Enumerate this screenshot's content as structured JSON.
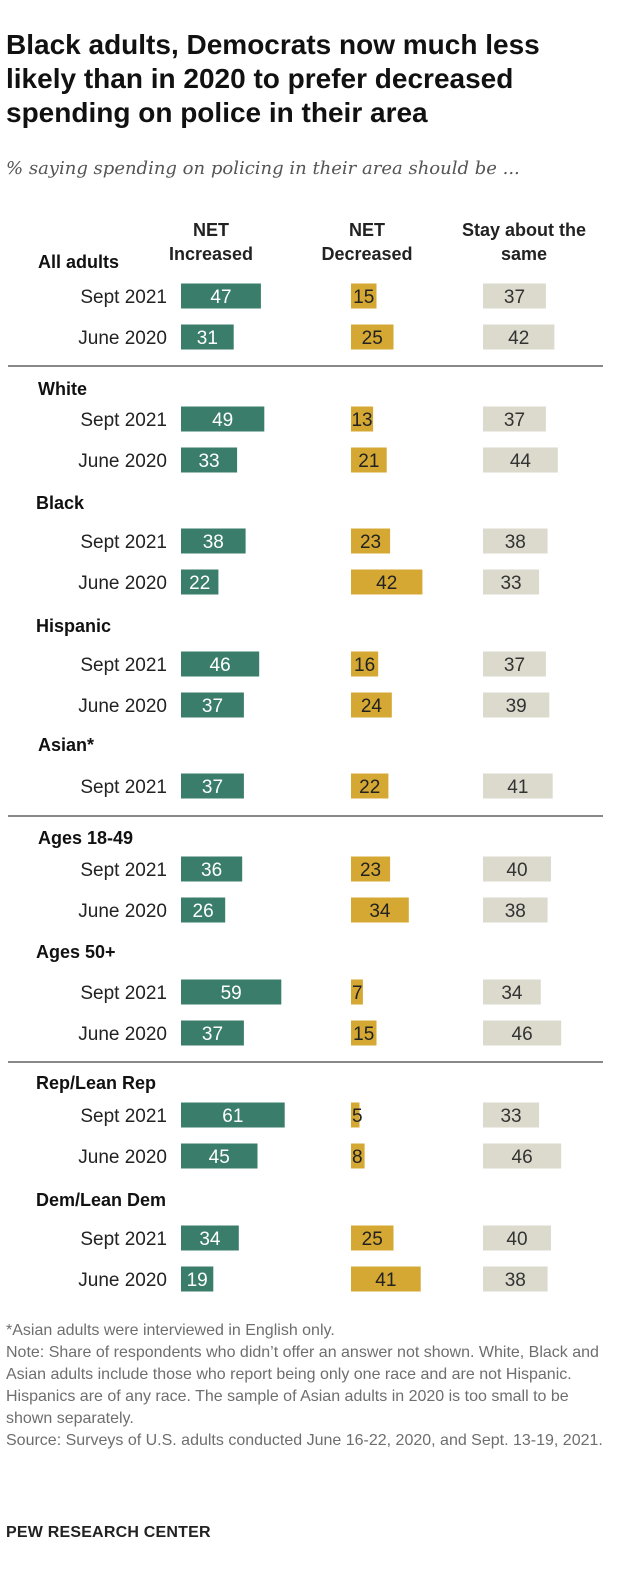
{
  "title": "Black adults, Democrats now much less likely than in 2020 to prefer decreased spending on police in their area",
  "subtitle": "% saying spending on policing in their area should be ...",
  "columns": [
    "NET Increased",
    "NET Decreased",
    "Stay about the same"
  ],
  "colors": {
    "increased": "#3a7d6b",
    "decreased": "#d4a832",
    "same": "#dcdacd",
    "rule": "#888888"
  },
  "chart_data": {
    "type": "bar",
    "subtitle": "% saying spending on policing in their area should be ...",
    "series_names": [
      "NET Increased",
      "NET Decreased",
      "Stay about the same"
    ],
    "groups": [
      {
        "label": "All adults",
        "rows": [
          {
            "label": "Sept 2021",
            "values": [
              47,
              15,
              37
            ]
          },
          {
            "label": "June 2020",
            "values": [
              31,
              25,
              42
            ]
          }
        ]
      },
      {
        "label": "White",
        "rows": [
          {
            "label": "Sept 2021",
            "values": [
              49,
              13,
              37
            ]
          },
          {
            "label": "June 2020",
            "values": [
              33,
              21,
              44
            ]
          }
        ]
      },
      {
        "label": "Black",
        "rows": [
          {
            "label": "Sept 2021",
            "values": [
              38,
              23,
              38
            ]
          },
          {
            "label": "June 2020",
            "values": [
              22,
              42,
              33
            ]
          }
        ]
      },
      {
        "label": "Hispanic",
        "rows": [
          {
            "label": "Sept 2021",
            "values": [
              46,
              16,
              37
            ]
          },
          {
            "label": "June 2020",
            "values": [
              37,
              24,
              39
            ]
          }
        ]
      },
      {
        "label": "Asian*",
        "rows": [
          {
            "label": "Sept 2021",
            "values": [
              37,
              22,
              41
            ]
          }
        ]
      },
      {
        "label": "Ages 18-49",
        "rows": [
          {
            "label": "Sept 2021",
            "values": [
              36,
              23,
              40
            ]
          },
          {
            "label": "June 2020",
            "values": [
              26,
              34,
              38
            ]
          }
        ]
      },
      {
        "label": "Ages 50+",
        "rows": [
          {
            "label": "Sept 2021",
            "values": [
              59,
              7,
              34
            ]
          },
          {
            "label": "June 2020",
            "values": [
              37,
              15,
              46
            ]
          }
        ]
      },
      {
        "label": "Rep/Lean Rep",
        "rows": [
          {
            "label": "Sept 2021",
            "values": [
              61,
              5,
              33
            ]
          },
          {
            "label": "June 2020",
            "values": [
              45,
              8,
              46
            ]
          }
        ]
      },
      {
        "label": "Dem/Lean Dem",
        "rows": [
          {
            "label": "Sept 2021",
            "values": [
              34,
              25,
              40
            ]
          },
          {
            "label": "June 2020",
            "values": [
              19,
              41,
              38
            ]
          }
        ]
      }
    ]
  },
  "notes": [
    "*Asian adults were interviewed in English only.",
    "Note: Share of respondents who didn’t offer an answer not shown. White, Black and Asian adults include those who report being only one race and are not Hispanic. Hispanics are of any race. The sample of Asian adults in 2020 is too small to be shown separately.",
    "Source: Surveys of U.S. adults conducted June 16-22, 2020, and Sept. 13-19, 2021."
  ],
  "source_label": "PEW RESEARCH CENTER"
}
